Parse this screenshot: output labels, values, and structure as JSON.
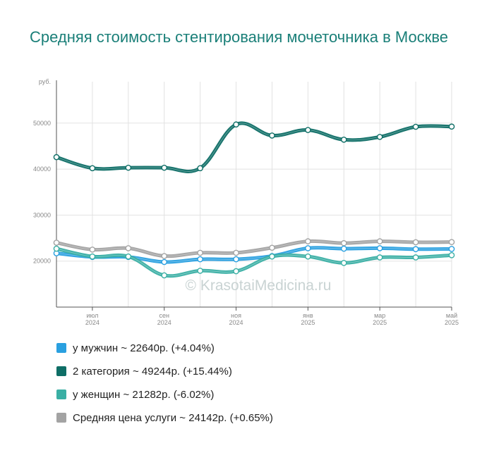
{
  "chart_data": {
    "type": "line",
    "title": "Средняя стоимость стентирования мочеточника в Москве",
    "y_unit": "руб.",
    "ylim": [
      10000,
      59000
    ],
    "yticks": [
      20000,
      30000,
      40000,
      50000
    ],
    "x": [
      "2024-06",
      "2024-07",
      "2024-08",
      "2024-09",
      "2024-10",
      "2024-11",
      "2024-12",
      "2025-01",
      "2025-02",
      "2025-03",
      "2025-04",
      "2025-05"
    ],
    "x_tick_labels": [
      {
        "index": 1,
        "month": "июл",
        "year": "2024"
      },
      {
        "index": 3,
        "month": "сен",
        "year": "2024"
      },
      {
        "index": 5,
        "month": "ноя",
        "year": "2024"
      },
      {
        "index": 7,
        "month": "янв",
        "year": "2025"
      },
      {
        "index": 9,
        "month": "мар",
        "year": "2025"
      },
      {
        "index": 11,
        "month": "май",
        "year": "2025"
      }
    ],
    "grid": true,
    "watermark": "© KrasotaiMedicina.ru",
    "series": [
      {
        "name": "у мужчин",
        "color": "#2aa0e0",
        "values": [
          21700,
          20900,
          20900,
          19800,
          20400,
          20400,
          21100,
          22800,
          22700,
          22800,
          22600,
          22640
        ]
      },
      {
        "name": "2 категория",
        "color": "#0e6e66",
        "values": [
          42600,
          40200,
          40300,
          40300,
          40200,
          49700,
          47300,
          48500,
          46400,
          47000,
          49200,
          49244
        ]
      },
      {
        "name": "у женщин",
        "color": "#3aafa4",
        "values": [
          22700,
          21000,
          21000,
          16900,
          17900,
          17800,
          21000,
          21000,
          19600,
          20800,
          20800,
          21282
        ]
      },
      {
        "name": "Средняя цена услуги",
        "color": "#a3a3a3",
        "values": [
          24000,
          22500,
          22800,
          21100,
          21800,
          21800,
          22900,
          24300,
          23900,
          24300,
          24100,
          24142
        ]
      }
    ]
  },
  "legend": [
    {
      "label": "у мужчин ~ 22640р. (+4.04%)",
      "color": "#2aa0e0"
    },
    {
      "label": "2 категория ~ 49244р. (+15.44%)",
      "color": "#0e6e66"
    },
    {
      "label": "у женщин ~ 21282р. (-6.02%)",
      "color": "#3aafa4"
    },
    {
      "label": "Средняя цена услуги ~ 24142р. (+0.65%)",
      "color": "#a3a3a3"
    }
  ]
}
